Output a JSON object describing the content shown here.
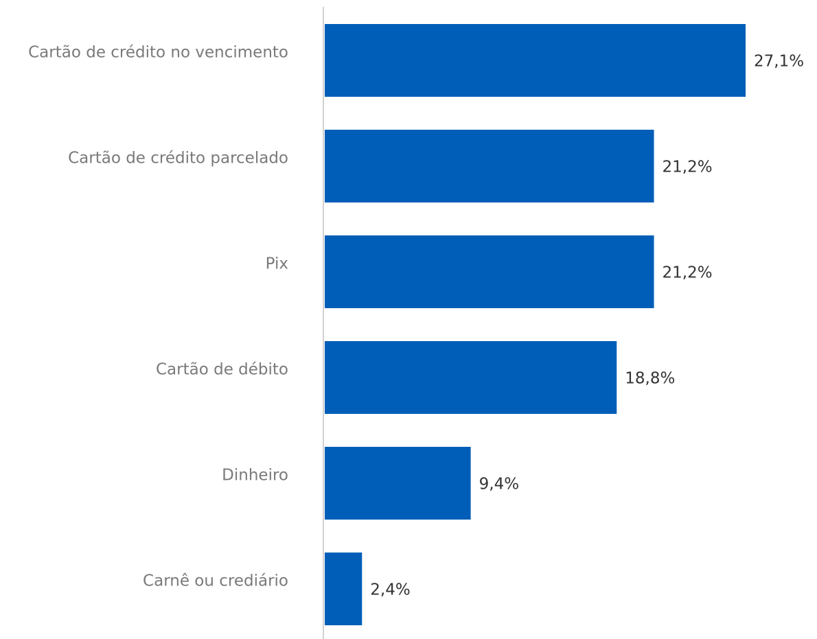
{
  "chart_data": {
    "type": "bar",
    "orientation": "horizontal",
    "categories": [
      "Cartão de crédito no vencimento",
      "Cartão de crédito parcelado",
      "Pix",
      "Cartão de débito",
      "Dinheiro",
      "Carnê ou crediário"
    ],
    "values": [
      27.1,
      21.2,
      21.2,
      18.8,
      9.4,
      2.4
    ],
    "value_labels": [
      "27,1%",
      "21,2%",
      "21,2%",
      "18,8%",
      "9,4%",
      "2,4%"
    ],
    "color": "#005eb8"
  }
}
